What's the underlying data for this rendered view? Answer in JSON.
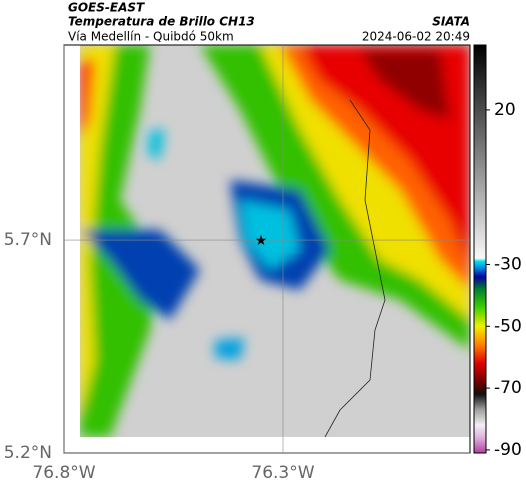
{
  "header": {
    "title": "GOES-EAST",
    "subtitle": "Temperatura de Brillo CH13",
    "source": "SIATA",
    "location": "Vía Medellín - Quibdó 50km",
    "datetime": "2024-06-02 20:49"
  },
  "map": {
    "xlim": [
      -76.8,
      -75.873
    ],
    "ylim": [
      5.2,
      6.158
    ],
    "xticks": [
      {
        "value": -76.8,
        "label": "76.8°W"
      },
      {
        "value": -76.3,
        "label": "76.3°W"
      }
    ],
    "yticks": [
      {
        "value": 5.2,
        "label": "5.2°N"
      },
      {
        "value": 5.7,
        "label": "5.7°N"
      }
    ],
    "marker": {
      "lon": -76.35,
      "lat": 5.7
    }
  },
  "colorbar": {
    "lim": [
      -91,
      41
    ],
    "ticks": [
      20,
      -30,
      -50,
      -70,
      -90
    ],
    "stops": [
      {
        "value": -91,
        "color": "#b040a0"
      },
      {
        "value": -86,
        "color": "#e0b0e0"
      },
      {
        "value": -82,
        "color": "#f0f0f0"
      },
      {
        "value": -77,
        "color": "#a0a0a0"
      },
      {
        "value": -72,
        "color": "#101010"
      },
      {
        "value": -68,
        "color": "#700000"
      },
      {
        "value": -62,
        "color": "#e00000"
      },
      {
        "value": -56,
        "color": "#ff8000"
      },
      {
        "value": -50,
        "color": "#f0f000"
      },
      {
        "value": -44,
        "color": "#40d000"
      },
      {
        "value": -38,
        "color": "#008030"
      },
      {
        "value": -34,
        "color": "#0000a0"
      },
      {
        "value": -31,
        "color": "#0090e0"
      },
      {
        "value": -29,
        "color": "#00e0f0"
      },
      {
        "value": -28,
        "color": "#f8f8f8"
      },
      {
        "value": 41,
        "color": "#000000"
      }
    ]
  }
}
